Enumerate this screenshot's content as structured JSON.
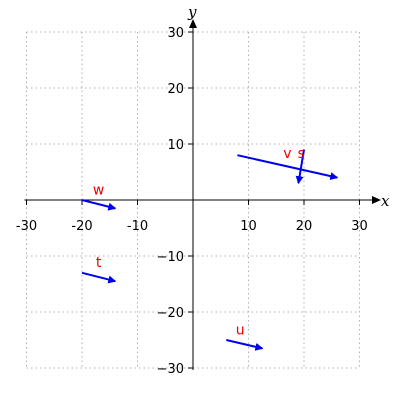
{
  "chart_data": {
    "type": "vector-field",
    "xlabel": "x",
    "ylabel": "y",
    "xlim": [
      -30,
      30
    ],
    "ylim": [
      -30,
      30
    ],
    "x_ticks": [
      -30,
      -20,
      -10,
      10,
      20,
      30
    ],
    "y_ticks": [
      -30,
      -20,
      -10,
      10,
      20,
      30
    ],
    "x_tick_labels": [
      "-30",
      "-20",
      "-10",
      "10",
      "20",
      "30"
    ],
    "y_tick_labels": [
      "−30",
      "−20",
      "−10",
      "10",
      "20",
      "30"
    ],
    "grid": true,
    "vectors": [
      {
        "label": "v",
        "from": [
          8,
          8
        ],
        "to": [
          26,
          4
        ],
        "label_at": [
          17,
          7.5
        ]
      },
      {
        "label": "s",
        "from": [
          20,
          9
        ],
        "to": [
          19,
          3
        ],
        "label_at": [
          19.5,
          7.5
        ]
      },
      {
        "label": "w",
        "from": [
          -20,
          0
        ],
        "to": [
          -14,
          -1.5
        ],
        "label_at": [
          -17,
          1
        ]
      },
      {
        "label": "t",
        "from": [
          -20,
          -13
        ],
        "to": [
          -14,
          -14.5
        ],
        "label_at": [
          -17,
          -12
        ]
      },
      {
        "label": "u",
        "from": [
          6,
          -25
        ],
        "to": [
          12.5,
          -26.5
        ],
        "label_at": [
          8.5,
          -24
        ]
      }
    ],
    "vector_color": "#0000ee",
    "label_color": "#ee0000"
  }
}
